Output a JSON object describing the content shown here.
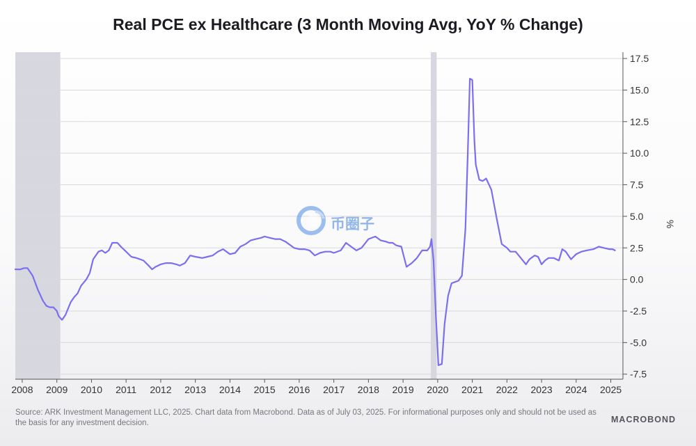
{
  "title": "Real PCE ex Healthcare (3 Month Moving Avg, YoY % Change)",
  "source_text": "Source: ARK Investment Management LLC, 2025. Chart data from Macrobond. Data as of July 03, 2025. For informational purposes only and should not be used as the basis for any investment decision.",
  "brand": "MACROBOND",
  "watermark_text": "币圈子",
  "colors": {
    "line": "#7b6ef0",
    "recession": "#d7d8df",
    "grid": "#d9d9de"
  },
  "chart_data": {
    "type": "line",
    "title": "Real PCE ex Healthcare (3 Month Moving Avg, YoY % Change)",
    "ylabel": "%",
    "xlim": [
      2007.8,
      2025.35
    ],
    "ylim": [
      -7.9,
      18.0
    ],
    "y_ticks": [
      -7.5,
      -5.0,
      -2.5,
      0.0,
      2.5,
      5.0,
      7.5,
      10.0,
      12.5,
      15.0,
      17.5
    ],
    "y_tick_labels": [
      "-7.5",
      "-5.0",
      "-2.5",
      "0.0",
      "2.5",
      "5.0",
      "7.5",
      "10.0",
      "12.5",
      "15.0",
      "17.5"
    ],
    "x_ticks": [
      2008,
      2009,
      2010,
      2011,
      2012,
      2013,
      2014,
      2015,
      2016,
      2017,
      2018,
      2019,
      2020,
      2021,
      2022,
      2023,
      2024,
      2025
    ],
    "x_tick_labels": [
      "2008",
      "2009",
      "2010",
      "2011",
      "2012",
      "2013",
      "2014",
      "2015",
      "2016",
      "2017",
      "2018",
      "2019",
      "2020",
      "2021",
      "2022",
      "2023",
      "2024",
      "2025"
    ],
    "grid": true,
    "y_axis_side": "right",
    "recessions": [
      [
        2007.8,
        2009.1
      ],
      [
        2019.8,
        2019.97
      ]
    ],
    "series": [
      {
        "color": "#7b6ef0",
        "x": [
          2007.8,
          2007.95,
          2008.05,
          2008.15,
          2008.3,
          2008.45,
          2008.6,
          2008.7,
          2008.8,
          2008.9,
          2009.0,
          2009.05,
          2009.15,
          2009.25,
          2009.4,
          2009.5,
          2009.6,
          2009.7,
          2009.85,
          2009.95,
          2010.05,
          2010.2,
          2010.3,
          2010.4,
          2010.5,
          2010.6,
          2010.75,
          2010.85,
          2011.0,
          2011.15,
          2011.3,
          2011.5,
          2011.65,
          2011.75,
          2011.85,
          2012.0,
          2012.15,
          2012.3,
          2012.45,
          2012.55,
          2012.7,
          2012.85,
          2013.0,
          2013.2,
          2013.35,
          2013.5,
          2013.65,
          2013.8,
          2014.0,
          2014.15,
          2014.3,
          2014.45,
          2014.6,
          2014.75,
          2014.9,
          2015.0,
          2015.15,
          2015.3,
          2015.45,
          2015.6,
          2015.75,
          2015.85,
          2016.0,
          2016.15,
          2016.3,
          2016.45,
          2016.6,
          2016.75,
          2016.9,
          2017.0,
          2017.2,
          2017.35,
          2017.5,
          2017.65,
          2017.8,
          2018.0,
          2018.2,
          2018.35,
          2018.5,
          2018.6,
          2018.7,
          2018.8,
          2018.95,
          2019.1,
          2019.25,
          2019.4,
          2019.55,
          2019.7,
          2019.78,
          2019.82,
          2019.88,
          2019.95,
          2020.02,
          2020.12,
          2020.2,
          2020.3,
          2020.4,
          2020.5,
          2020.6,
          2020.7,
          2020.8,
          2020.87,
          2020.93,
          2021.0,
          2021.06,
          2021.1,
          2021.2,
          2021.3,
          2021.4,
          2021.55,
          2021.7,
          2021.85,
          2022.0,
          2022.1,
          2022.25,
          2022.4,
          2022.55,
          2022.65,
          2022.8,
          2022.9,
          2023.0,
          2023.1,
          2023.2,
          2023.35,
          2023.5,
          2023.6,
          2023.7,
          2023.85,
          2024.0,
          2024.15,
          2024.3,
          2024.5,
          2024.65,
          2024.8,
          2024.95,
          2025.05,
          2025.12
        ],
        "y": [
          0.8,
          0.8,
          0.9,
          0.9,
          0.3,
          -0.8,
          -1.7,
          -2.1,
          -2.2,
          -2.2,
          -2.5,
          -2.9,
          -3.2,
          -2.8,
          -1.8,
          -1.4,
          -1.1,
          -0.5,
          0.0,
          0.5,
          1.6,
          2.2,
          2.3,
          2.1,
          2.3,
          2.9,
          2.9,
          2.6,
          2.2,
          1.8,
          1.7,
          1.5,
          1.1,
          0.8,
          1.0,
          1.2,
          1.3,
          1.3,
          1.2,
          1.1,
          1.3,
          1.9,
          1.8,
          1.7,
          1.8,
          1.9,
          2.2,
          2.4,
          2.0,
          2.1,
          2.6,
          2.8,
          3.1,
          3.2,
          3.3,
          3.4,
          3.3,
          3.2,
          3.2,
          3.0,
          2.7,
          2.5,
          2.4,
          2.4,
          2.3,
          1.9,
          2.1,
          2.2,
          2.2,
          2.1,
          2.3,
          2.9,
          2.6,
          2.3,
          2.5,
          3.2,
          3.4,
          3.1,
          3.0,
          2.9,
          2.9,
          2.7,
          2.6,
          1.0,
          1.3,
          1.7,
          2.3,
          2.3,
          2.6,
          3.2,
          1.5,
          -3.0,
          -6.8,
          -6.7,
          -3.5,
          -1.3,
          -0.3,
          -0.2,
          -0.1,
          0.3,
          4.0,
          10.0,
          15.9,
          15.8,
          11.0,
          9.1,
          7.9,
          7.8,
          8.0,
          7.1,
          4.9,
          2.8,
          2.5,
          2.2,
          2.2,
          1.7,
          1.2,
          1.6,
          1.9,
          1.8,
          1.2,
          1.5,
          1.7,
          1.7,
          1.5,
          2.4,
          2.2,
          1.6,
          2.0,
          2.2,
          2.3,
          2.4,
          2.6,
          2.5,
          2.4,
          2.4,
          2.3
        ]
      }
    ]
  }
}
